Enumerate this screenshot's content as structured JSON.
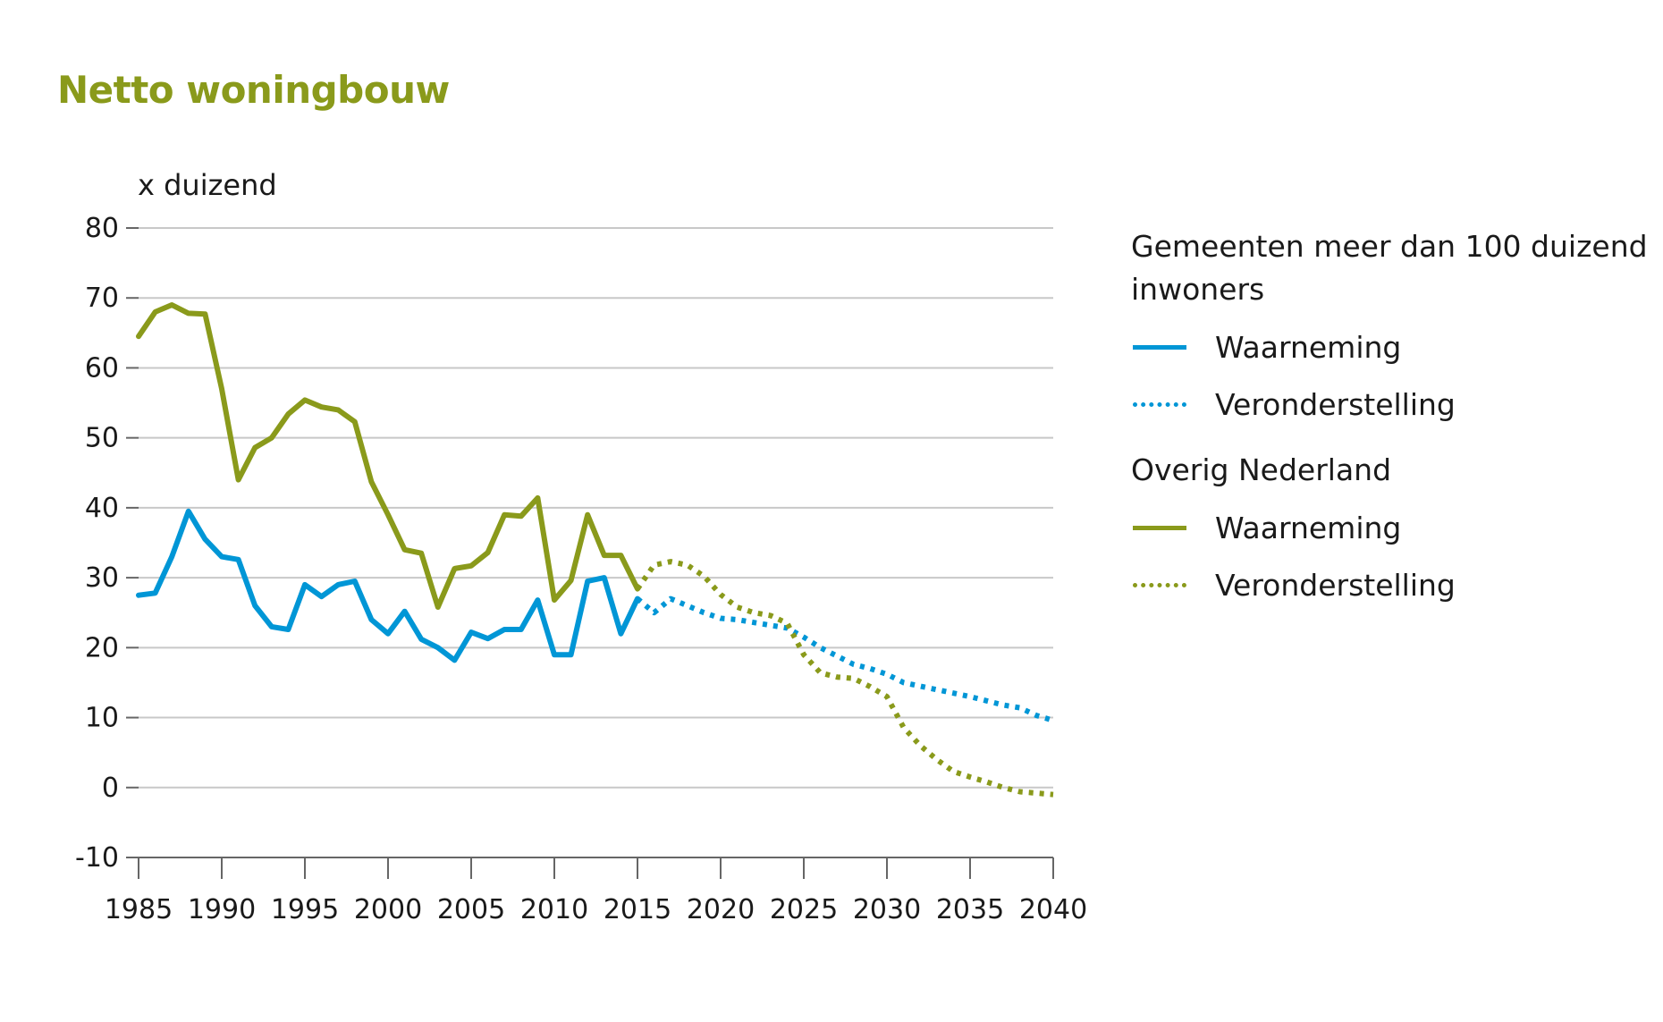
{
  "title": "Netto woningbouw",
  "colors": {
    "title": "#8a9a1b",
    "blue": "#0096d6",
    "green": "#8a9a1b",
    "grid": "#c8c8c8",
    "axis": "#666666"
  },
  "legend": {
    "group1_title": "Gemeenten meer dan 100 duizend inwoners",
    "group1_obs": "Waarneming",
    "group1_proj": "Veronderstelling",
    "group2_title": "Overig Nederland",
    "group2_obs": "Waarneming",
    "group2_proj": "Veronderstelling"
  },
  "chart_data": {
    "type": "line",
    "title": "Netto woningbouw",
    "ylabel": "x duizend",
    "xlabel": "",
    "xlim": [
      1985,
      2040
    ],
    "ylim": [
      -10,
      80
    ],
    "x_ticks": [
      1985,
      1990,
      1995,
      2000,
      2005,
      2010,
      2015,
      2020,
      2025,
      2030,
      2035,
      2040
    ],
    "y_ticks": [
      -10,
      0,
      10,
      20,
      30,
      40,
      50,
      60,
      70,
      80
    ],
    "grid": "horizontal",
    "legend_position": "right",
    "series": [
      {
        "group": "Gemeenten meer dan 100 duizend inwoners",
        "name": "Waarneming",
        "color": "#0096d6",
        "style": "solid",
        "x": [
          1985,
          1986,
          1987,
          1988,
          1989,
          1990,
          1991,
          1992,
          1993,
          1994,
          1995,
          1996,
          1997,
          1998,
          1999,
          2000,
          2001,
          2002,
          2003,
          2004,
          2005,
          2006,
          2007,
          2008,
          2009,
          2010,
          2011,
          2012,
          2013,
          2014,
          2015
        ],
        "values": [
          27.5,
          27.8,
          33,
          39.5,
          35.5,
          33,
          32.6,
          26,
          23,
          22.6,
          29,
          27.3,
          29,
          29.5,
          24,
          22,
          25.2,
          21.2,
          20,
          18.2,
          22.2,
          21.3,
          22.6,
          22.6,
          26.8,
          19,
          19,
          29.5,
          30,
          22,
          27
        ]
      },
      {
        "group": "Gemeenten meer dan 100 duizend inwoners",
        "name": "Veronderstelling",
        "color": "#0096d6",
        "style": "dotted",
        "x": [
          2015,
          2016,
          2017,
          2018,
          2019,
          2020,
          2021,
          2022,
          2023,
          2024,
          2025,
          2026,
          2027,
          2028,
          2029,
          2030,
          2031,
          2032,
          2033,
          2034,
          2035,
          2036,
          2037,
          2038,
          2039,
          2040
        ],
        "values": [
          27,
          25,
          27,
          26,
          25,
          24.2,
          24,
          23.6,
          23.2,
          22.8,
          21.5,
          20,
          18.8,
          17.6,
          17,
          16.2,
          15,
          14.5,
          14,
          13.5,
          13,
          12.4,
          11.8,
          11.4,
          10.3,
          9.6
        ]
      },
      {
        "group": "Overig Nederland",
        "name": "Waarneming",
        "color": "#8a9a1b",
        "style": "solid",
        "x": [
          1985,
          1986,
          1987,
          1988,
          1989,
          1990,
          1991,
          1992,
          1993,
          1994,
          1995,
          1996,
          1997,
          1998,
          1999,
          2000,
          2001,
          2002,
          2003,
          2004,
          2005,
          2006,
          2007,
          2008,
          2009,
          2010,
          2011,
          2012,
          2013,
          2014,
          2015
        ],
        "values": [
          64.5,
          68,
          69,
          67.8,
          67.7,
          57,
          44,
          48.6,
          50,
          53.4,
          55.4,
          54.4,
          54,
          52.3,
          43.7,
          39,
          34,
          33.5,
          25.8,
          31.3,
          31.7,
          33.6,
          39,
          38.8,
          41.4,
          26.8,
          29.6,
          39,
          33.2,
          33.2,
          28.4
        ]
      },
      {
        "group": "Overig Nederland",
        "name": "Veronderstelling",
        "color": "#8a9a1b",
        "style": "dotted",
        "x": [
          2015,
          2016,
          2017,
          2018,
          2019,
          2020,
          2021,
          2022,
          2023,
          2024,
          2025,
          2026,
          2027,
          2028,
          2029,
          2030,
          2031,
          2032,
          2033,
          2034,
          2035,
          2036,
          2037,
          2038,
          2039,
          2040
        ],
        "values": [
          28.4,
          31.8,
          32.3,
          31.8,
          30.2,
          27.6,
          25.8,
          25,
          24.6,
          23.5,
          19,
          16.4,
          15.8,
          15.6,
          14.4,
          13,
          8.6,
          6,
          4,
          2.3,
          1.5,
          0.8,
          0,
          -0.6,
          -0.8,
          -1
        ]
      }
    ]
  }
}
